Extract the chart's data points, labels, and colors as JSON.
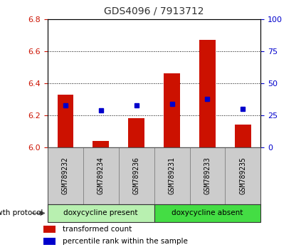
{
  "title": "GDS4096 / 7913712",
  "samples": [
    "GSM789232",
    "GSM789234",
    "GSM789236",
    "GSM789231",
    "GSM789233",
    "GSM789235"
  ],
  "red_values": [
    6.33,
    6.04,
    6.18,
    6.46,
    6.67,
    6.14
  ],
  "blue_values": [
    6.26,
    6.23,
    6.26,
    6.27,
    6.3,
    6.24
  ],
  "ylim_left": [
    6.0,
    6.8
  ],
  "ylim_right": [
    0,
    100
  ],
  "yticks_left": [
    6.0,
    6.2,
    6.4,
    6.6,
    6.8
  ],
  "yticks_right": [
    0,
    25,
    50,
    75,
    100
  ],
  "groups": [
    {
      "label": "doxycycline present",
      "indices": [
        0,
        1,
        2
      ],
      "color": "#B8F0B0"
    },
    {
      "label": "doxycycline absent",
      "indices": [
        3,
        4,
        5
      ],
      "color": "#44DD44"
    }
  ],
  "group_label": "growth protocol",
  "legend_red": "transformed count",
  "legend_blue": "percentile rank within the sample",
  "bar_base": 6.0,
  "bar_color": "#CC1100",
  "dot_color": "#0000CC",
  "plot_bg": "#FFFFFF",
  "tick_color_left": "#CC1100",
  "tick_color_right": "#0000CC",
  "title_color": "#333333",
  "sample_bg": "#CCCCCC",
  "sample_border": "#888888"
}
